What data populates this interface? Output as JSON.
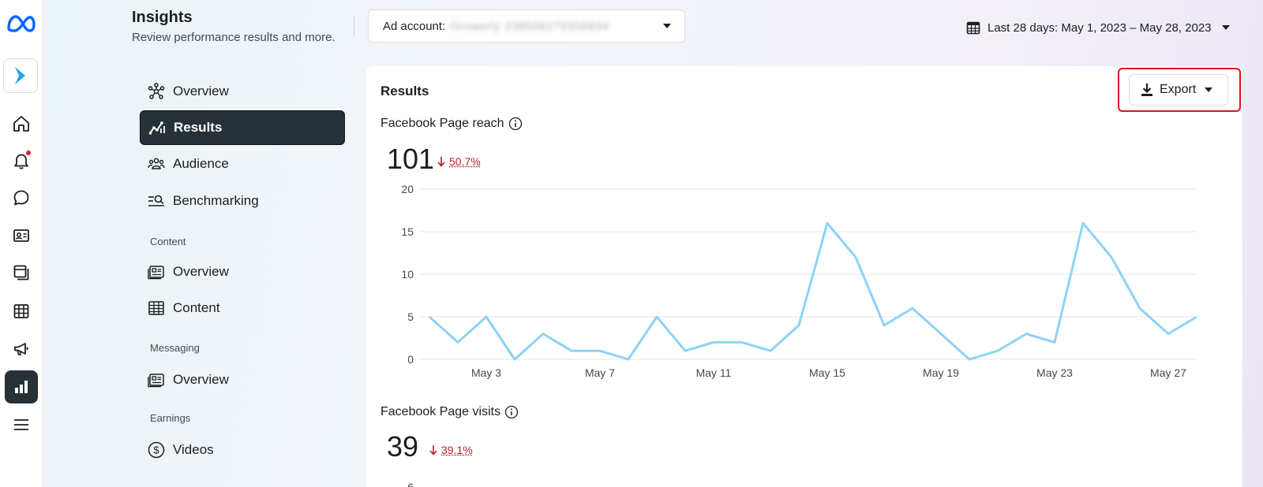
{
  "header": {
    "title": "Insights",
    "subtitle": "Review performance results and more.",
    "ad_account_label": "Ad account:",
    "ad_account_value": "Growerly 238506279356834",
    "date_range": "Last 28 days: May 1, 2023 – May 28, 2023"
  },
  "rail": {
    "items": [
      "meta-logo",
      "app",
      "home",
      "notifications",
      "messages",
      "contacts",
      "pages",
      "table",
      "ads",
      "insights",
      "menu"
    ],
    "active": "insights",
    "notification_color": "#e41e3f"
  },
  "nav": {
    "items": [
      {
        "label": "Overview",
        "icon": "network-icon"
      },
      {
        "label": "Results",
        "icon": "trend-icon",
        "active": true
      },
      {
        "label": "Audience",
        "icon": "people-icon"
      },
      {
        "label": "Benchmarking",
        "icon": "benchmark-icon"
      }
    ],
    "sections": [
      {
        "title": "Content",
        "items": [
          {
            "label": "Overview",
            "icon": "feed-icon"
          },
          {
            "label": "Content",
            "icon": "table-icon"
          }
        ]
      },
      {
        "title": "Messaging",
        "items": [
          {
            "label": "Overview",
            "icon": "feed-icon"
          }
        ]
      },
      {
        "title": "Earnings",
        "items": [
          {
            "label": "Videos",
            "icon": "dollar-icon"
          }
        ]
      }
    ]
  },
  "results": {
    "title": "Results",
    "export_label": "Export",
    "metrics": [
      {
        "label": "Facebook Page reach",
        "value": "101",
        "change": "50.7%",
        "direction": "down"
      },
      {
        "label": "Facebook Page visits",
        "value": "39",
        "change": "39.1%",
        "direction": "down"
      }
    ]
  },
  "chart_data": {
    "type": "line",
    "title": "",
    "x": [
      "May 1",
      "May 2",
      "May 3",
      "May 4",
      "May 5",
      "May 6",
      "May 7",
      "May 8",
      "May 9",
      "May 10",
      "May 11",
      "May 12",
      "May 13",
      "May 14",
      "May 15",
      "May 16",
      "May 17",
      "May 18",
      "May 19",
      "May 20",
      "May 21",
      "May 22",
      "May 23",
      "May 24",
      "May 25",
      "May 26",
      "May 27",
      "May 28"
    ],
    "series": [
      {
        "values": [
          5,
          2,
          5,
          0,
          3,
          1,
          1,
          0,
          5,
          1,
          2,
          2,
          1,
          4,
          16,
          12,
          4,
          6,
          3,
          0,
          1,
          3,
          2,
          16,
          12,
          6,
          3,
          5
        ]
      }
    ],
    "xticks": [
      "May 3",
      "May 7",
      "May 11",
      "May 15",
      "May 19",
      "May 23",
      "May 27"
    ],
    "yticks": [
      0,
      5,
      10,
      15,
      20
    ],
    "ylim": [
      0,
      20
    ],
    "grid": true,
    "line_color": "#8dd3f6"
  },
  "second_chart_peek": {
    "ytick_top": "6"
  }
}
